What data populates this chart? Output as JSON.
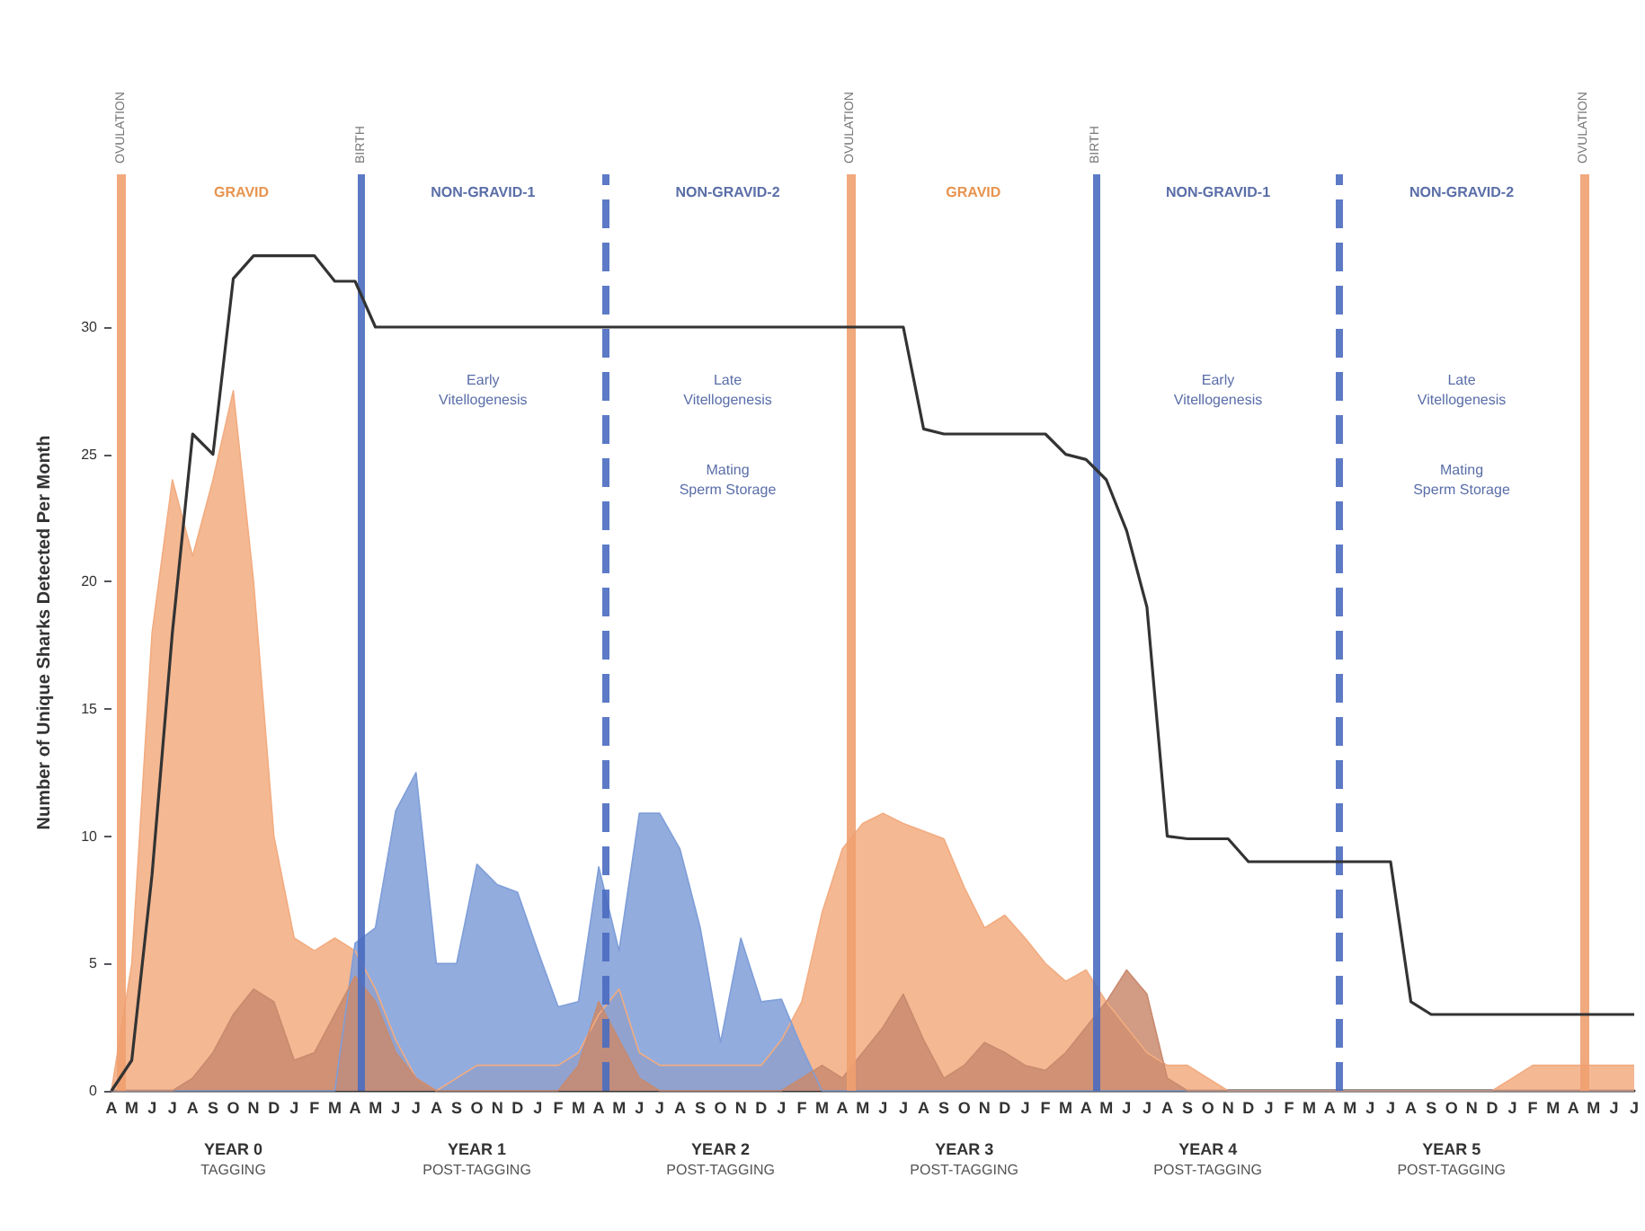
{
  "chart_data": {
    "type": "area",
    "ylabel": "Number of Unique Sharks Detected Per Month",
    "ylim": [
      0,
      36
    ],
    "yticks": [
      0,
      5,
      10,
      15,
      20,
      25,
      30
    ],
    "categories": [
      "A",
      "M",
      "J",
      "J",
      "A",
      "S",
      "O",
      "N",
      "D",
      "J",
      "F",
      "M",
      "A",
      "M",
      "J",
      "J",
      "A",
      "S",
      "O",
      "N",
      "D",
      "J",
      "F",
      "M",
      "A",
      "M",
      "J",
      "J",
      "A",
      "S",
      "O",
      "N",
      "D",
      "J",
      "F",
      "M",
      "A",
      "M",
      "J",
      "J",
      "A",
      "S",
      "O",
      "N",
      "D",
      "J",
      "F",
      "M",
      "A",
      "M",
      "J",
      "J",
      "A",
      "S",
      "O",
      "N",
      "D",
      "J",
      "F",
      "M",
      "A",
      "M",
      "J",
      "J",
      "A",
      "S",
      "O",
      "N",
      "D",
      "J",
      "F",
      "M",
      "A",
      "M",
      "J",
      "J"
    ],
    "marker": "none",
    "line_style": "solid",
    "grid": false,
    "series": [
      {
        "color": "#f2ac80",
        "values": [
          0,
          5,
          18,
          24,
          21,
          24,
          27.5,
          20,
          10,
          6,
          5.5,
          6,
          5.5,
          4,
          2,
          0.5,
          0,
          0.5,
          1,
          1,
          1,
          1,
          1,
          1.5,
          3,
          4,
          1.5,
          1,
          1,
          1,
          1,
          1,
          1,
          2,
          3.5,
          7,
          9.5,
          10.5,
          10.9,
          10.5,
          10.2,
          9.9,
          8,
          6.4,
          6.9,
          6,
          5,
          4.3,
          4.75,
          3.5,
          2.5,
          1.5,
          1,
          1,
          0.5,
          0,
          0,
          0,
          0,
          0,
          0,
          0,
          0,
          0,
          0,
          0,
          0,
          0,
          0,
          0.5,
          1,
          1,
          1,
          1,
          1,
          1
        ]
      },
      {
        "color": "#7f9ed8",
        "values": [
          0,
          0,
          0,
          0,
          0,
          0,
          0,
          0,
          0,
          0,
          0,
          0,
          5.8,
          6.4,
          11,
          12.5,
          5,
          5,
          8.9,
          8.1,
          7.8,
          5.5,
          3.3,
          3.5,
          8.8,
          5.5,
          10.9,
          10.9,
          9.5,
          6.4,
          1.9,
          6,
          3.5,
          3.6,
          1.7,
          0,
          0,
          0,
          0,
          0,
          0,
          0,
          0,
          0,
          0,
          0,
          0,
          0,
          0,
          0,
          0,
          0,
          0,
          0,
          0,
          0,
          0,
          0,
          0,
          0,
          0,
          0,
          0,
          0,
          0,
          0,
          0,
          0,
          0,
          0,
          0,
          0,
          0,
          0,
          0,
          0
        ]
      },
      {
        "color": "#c98a6e",
        "values": [
          0,
          0,
          0,
          0,
          0.5,
          1.5,
          3,
          4,
          3.5,
          1.2,
          1.5,
          3,
          4.5,
          3.5,
          1.5,
          0.5,
          0,
          0,
          0,
          0,
          0,
          0,
          0,
          1,
          3.5,
          2,
          0.5,
          0,
          0,
          0,
          0,
          0,
          0,
          0,
          0.5,
          1,
          0.5,
          1.5,
          2.5,
          3.8,
          2,
          0.5,
          1,
          1.9,
          1.5,
          1,
          0.8,
          1.5,
          2.5,
          3.5,
          4.75,
          3.8,
          0.5,
          0,
          0,
          0,
          0,
          0,
          0,
          0,
          0,
          0,
          0,
          0,
          0,
          0,
          0,
          0,
          0,
          0,
          0,
          0,
          0,
          0,
          0,
          0
        ]
      },
      {
        "type": "line",
        "color": "#333333",
        "values": [
          0,
          1.2,
          8.5,
          18,
          25.8,
          25,
          31.9,
          32.8,
          32.8,
          32.8,
          32.8,
          31.8,
          31.8,
          30,
          30,
          30,
          30,
          30,
          30,
          30,
          30,
          30,
          30,
          30,
          30,
          30,
          30,
          30,
          30,
          30,
          30,
          30,
          30,
          30,
          30,
          30,
          30,
          30,
          30,
          30,
          26,
          25.8,
          25.8,
          25.8,
          25.8,
          25.8,
          25.8,
          25,
          24.8,
          24,
          22,
          19,
          10,
          9.9,
          9.9,
          9.9,
          9,
          9,
          9,
          9,
          9,
          9,
          9,
          9,
          3.5,
          3,
          3,
          3,
          3,
          3,
          3,
          3,
          3,
          3,
          3,
          3
        ]
      }
    ],
    "annotations": [
      "YEAR 0\nTAGGING",
      "YEAR 1\nPOST-TAGGING",
      "YEAR 2\nPOST-TAGGING",
      "YEAR 3\nPOST-TAGGING",
      "YEAR 4\nPOST-TAGGING",
      "YEAR 5\nPOST-TAGGING",
      "Early\nVitellogenesis",
      "Late\nVitellogenesis",
      "Mating\nSperm Storage",
      "Early\nVitellogenesis",
      "Late\nVitellogenesis",
      "Mating\nSperm Storage",
      "OVULATION",
      "BIRTH",
      "OVULATION",
      "BIRTH",
      "OVULATION",
      "GRAVID",
      "NON-GRAVID-1",
      "NON-GRAVID-2",
      "GRAVID",
      "NON-GRAVID-1",
      "NON-GRAVID-2"
    ]
  }
}
